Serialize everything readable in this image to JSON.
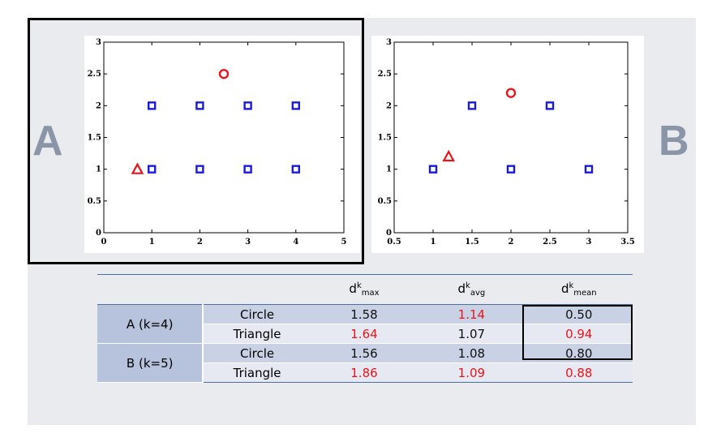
{
  "labels": {
    "a": "A",
    "b": "B"
  },
  "chart_data": [
    {
      "type": "scatter",
      "title": "",
      "xlabel": "",
      "ylabel": "",
      "xlim": [
        0,
        5
      ],
      "ylim": [
        0,
        3
      ],
      "xticks": [
        "0",
        "1",
        "2",
        "3",
        "4",
        "5"
      ],
      "yticks": [
        "0",
        "0.5",
        "1",
        "1.5",
        "2",
        "2.5",
        "3"
      ],
      "grid": false,
      "series": [
        {
          "marker": "square",
          "color": "#1a1adc",
          "points": [
            [
              1,
              1
            ],
            [
              2,
              1
            ],
            [
              3,
              1
            ],
            [
              4,
              1
            ],
            [
              1,
              2
            ],
            [
              2,
              2
            ],
            [
              3,
              2
            ],
            [
              4,
              2
            ]
          ]
        },
        {
          "marker": "circle",
          "color": "#e8141b",
          "points": [
            [
              2.5,
              2.5
            ]
          ]
        },
        {
          "marker": "triangle",
          "color": "#e8141b",
          "points": [
            [
              0.7,
              1.0
            ]
          ]
        }
      ]
    },
    {
      "type": "scatter",
      "title": "",
      "xlabel": "",
      "ylabel": "",
      "xlim": [
        0.5,
        3.5
      ],
      "ylim": [
        0,
        3
      ],
      "xticks": [
        "0.5",
        "1",
        "1.5",
        "2",
        "2.5",
        "3",
        "3.5"
      ],
      "yticks": [
        "0",
        "0.5",
        "1",
        "1.5",
        "2",
        "2.5",
        "3"
      ],
      "grid": false,
      "series": [
        {
          "marker": "square",
          "color": "#1a1adc",
          "points": [
            [
              1,
              1
            ],
            [
              2,
              1
            ],
            [
              3,
              1
            ],
            [
              1.5,
              2
            ],
            [
              2.5,
              2
            ]
          ]
        },
        {
          "marker": "circle",
          "color": "#e8141b",
          "points": [
            [
              2,
              2.2
            ]
          ]
        },
        {
          "marker": "triangle",
          "color": "#e8141b",
          "points": [
            [
              1.2,
              1.2
            ]
          ]
        }
      ]
    }
  ],
  "table": {
    "headers": [
      {
        "base": "d",
        "sup": "k",
        "sub": "max"
      },
      {
        "base": "d",
        "sup": "k",
        "sub": "avg"
      },
      {
        "base": "d",
        "sup": "k",
        "sub": "mean"
      }
    ],
    "groups": [
      {
        "label": "A (k=4)",
        "rows": [
          {
            "shape": "Circle",
            "values": [
              "1.58",
              "1.14",
              "0.50"
            ],
            "red": [
              false,
              true,
              false
            ]
          },
          {
            "shape": "Triangle",
            "values": [
              "1.64",
              "1.07",
              "0.94"
            ],
            "red": [
              true,
              false,
              true
            ]
          }
        ]
      },
      {
        "label": "B (k=5)",
        "rows": [
          {
            "shape": "Circle",
            "values": [
              "1.56",
              "1.08",
              "0.80"
            ],
            "red": [
              false,
              false,
              false
            ]
          },
          {
            "shape": "Triangle",
            "values": [
              "1.86",
              "1.09",
              "0.88"
            ],
            "red": [
              true,
              true,
              true
            ]
          }
        ]
      }
    ]
  }
}
